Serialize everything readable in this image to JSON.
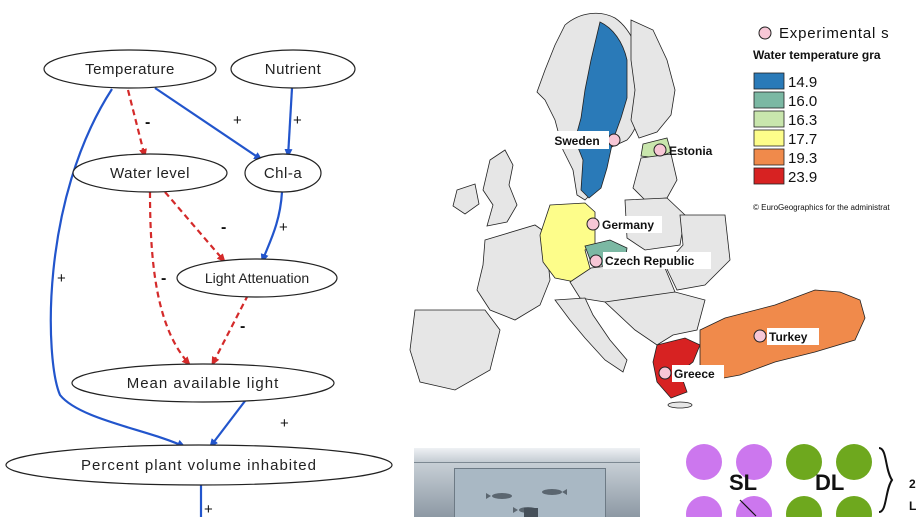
{
  "diagram": {
    "nodes": [
      {
        "id": "temperature",
        "label": "Temperature"
      },
      {
        "id": "nutrient",
        "label": "Nutrient"
      },
      {
        "id": "water_level",
        "label": "Water level"
      },
      {
        "id": "chla",
        "label": "Chl-a"
      },
      {
        "id": "light_attenuation",
        "label": "Light Attenuation"
      },
      {
        "id": "mean_available_light",
        "label": "Mean available light"
      },
      {
        "id": "percent_plant_volume",
        "label": "Percent plant volume inhabited"
      }
    ],
    "edges": [
      {
        "from": "temperature",
        "to": "water_level",
        "sign": "-",
        "style": "dashed",
        "color": "#d42a2a"
      },
      {
        "from": "temperature",
        "to": "chla",
        "sign": "+",
        "style": "solid",
        "color": "#2255cc"
      },
      {
        "from": "nutrient",
        "to": "chla",
        "sign": "+",
        "style": "solid",
        "color": "#2255cc"
      },
      {
        "from": "water_level",
        "to": "light_attenuation",
        "sign": "-",
        "style": "dashed",
        "color": "#d42a2a"
      },
      {
        "from": "chla",
        "to": "light_attenuation",
        "sign": "+",
        "style": "solid",
        "color": "#2255cc"
      },
      {
        "from": "water_level",
        "to": "mean_available_light",
        "sign": "-",
        "style": "dashed",
        "color": "#d42a2a"
      },
      {
        "from": "light_attenuation",
        "to": "mean_available_light",
        "sign": "-",
        "style": "dashed",
        "color": "#d42a2a"
      },
      {
        "from": "temperature",
        "to": "percent_plant_volume",
        "sign": "+",
        "style": "solid",
        "color": "#2255cc"
      },
      {
        "from": "mean_available_light",
        "to": "percent_plant_volume",
        "sign": "+",
        "style": "solid",
        "color": "#2255cc"
      },
      {
        "from": "percent_plant_volume",
        "to": "below",
        "sign": "+",
        "style": "solid",
        "color": "#2255cc"
      }
    ]
  },
  "map": {
    "legend_title": "Experimental s",
    "legend_subtitle": "Water temperature gra",
    "legend": [
      {
        "value": "14.9",
        "color": "#2a7ab8"
      },
      {
        "value": "16.0",
        "color": "#7bb8a3"
      },
      {
        "value": "16.3",
        "color": "#c9e6ad"
      },
      {
        "value": "17.7",
        "color": "#fdfd8a"
      },
      {
        "value": "19.3",
        "color": "#f08a4b"
      },
      {
        "value": "23.9",
        "color": "#d72222"
      }
    ],
    "credit": "© EuroGeographics for the administrat",
    "sites": [
      {
        "name": "Sweden"
      },
      {
        "name": "Estonia"
      },
      {
        "name": "Germany"
      },
      {
        "name": "Czech Republic"
      },
      {
        "name": "Turkey"
      },
      {
        "name": "Greece"
      }
    ]
  },
  "layout_panel": {
    "sl_label": "SL",
    "dl_label": "DL",
    "side_text_1": "2",
    "side_text_2": "L",
    "sl_color": "#cc77ee",
    "dl_color": "#6ea81e"
  }
}
